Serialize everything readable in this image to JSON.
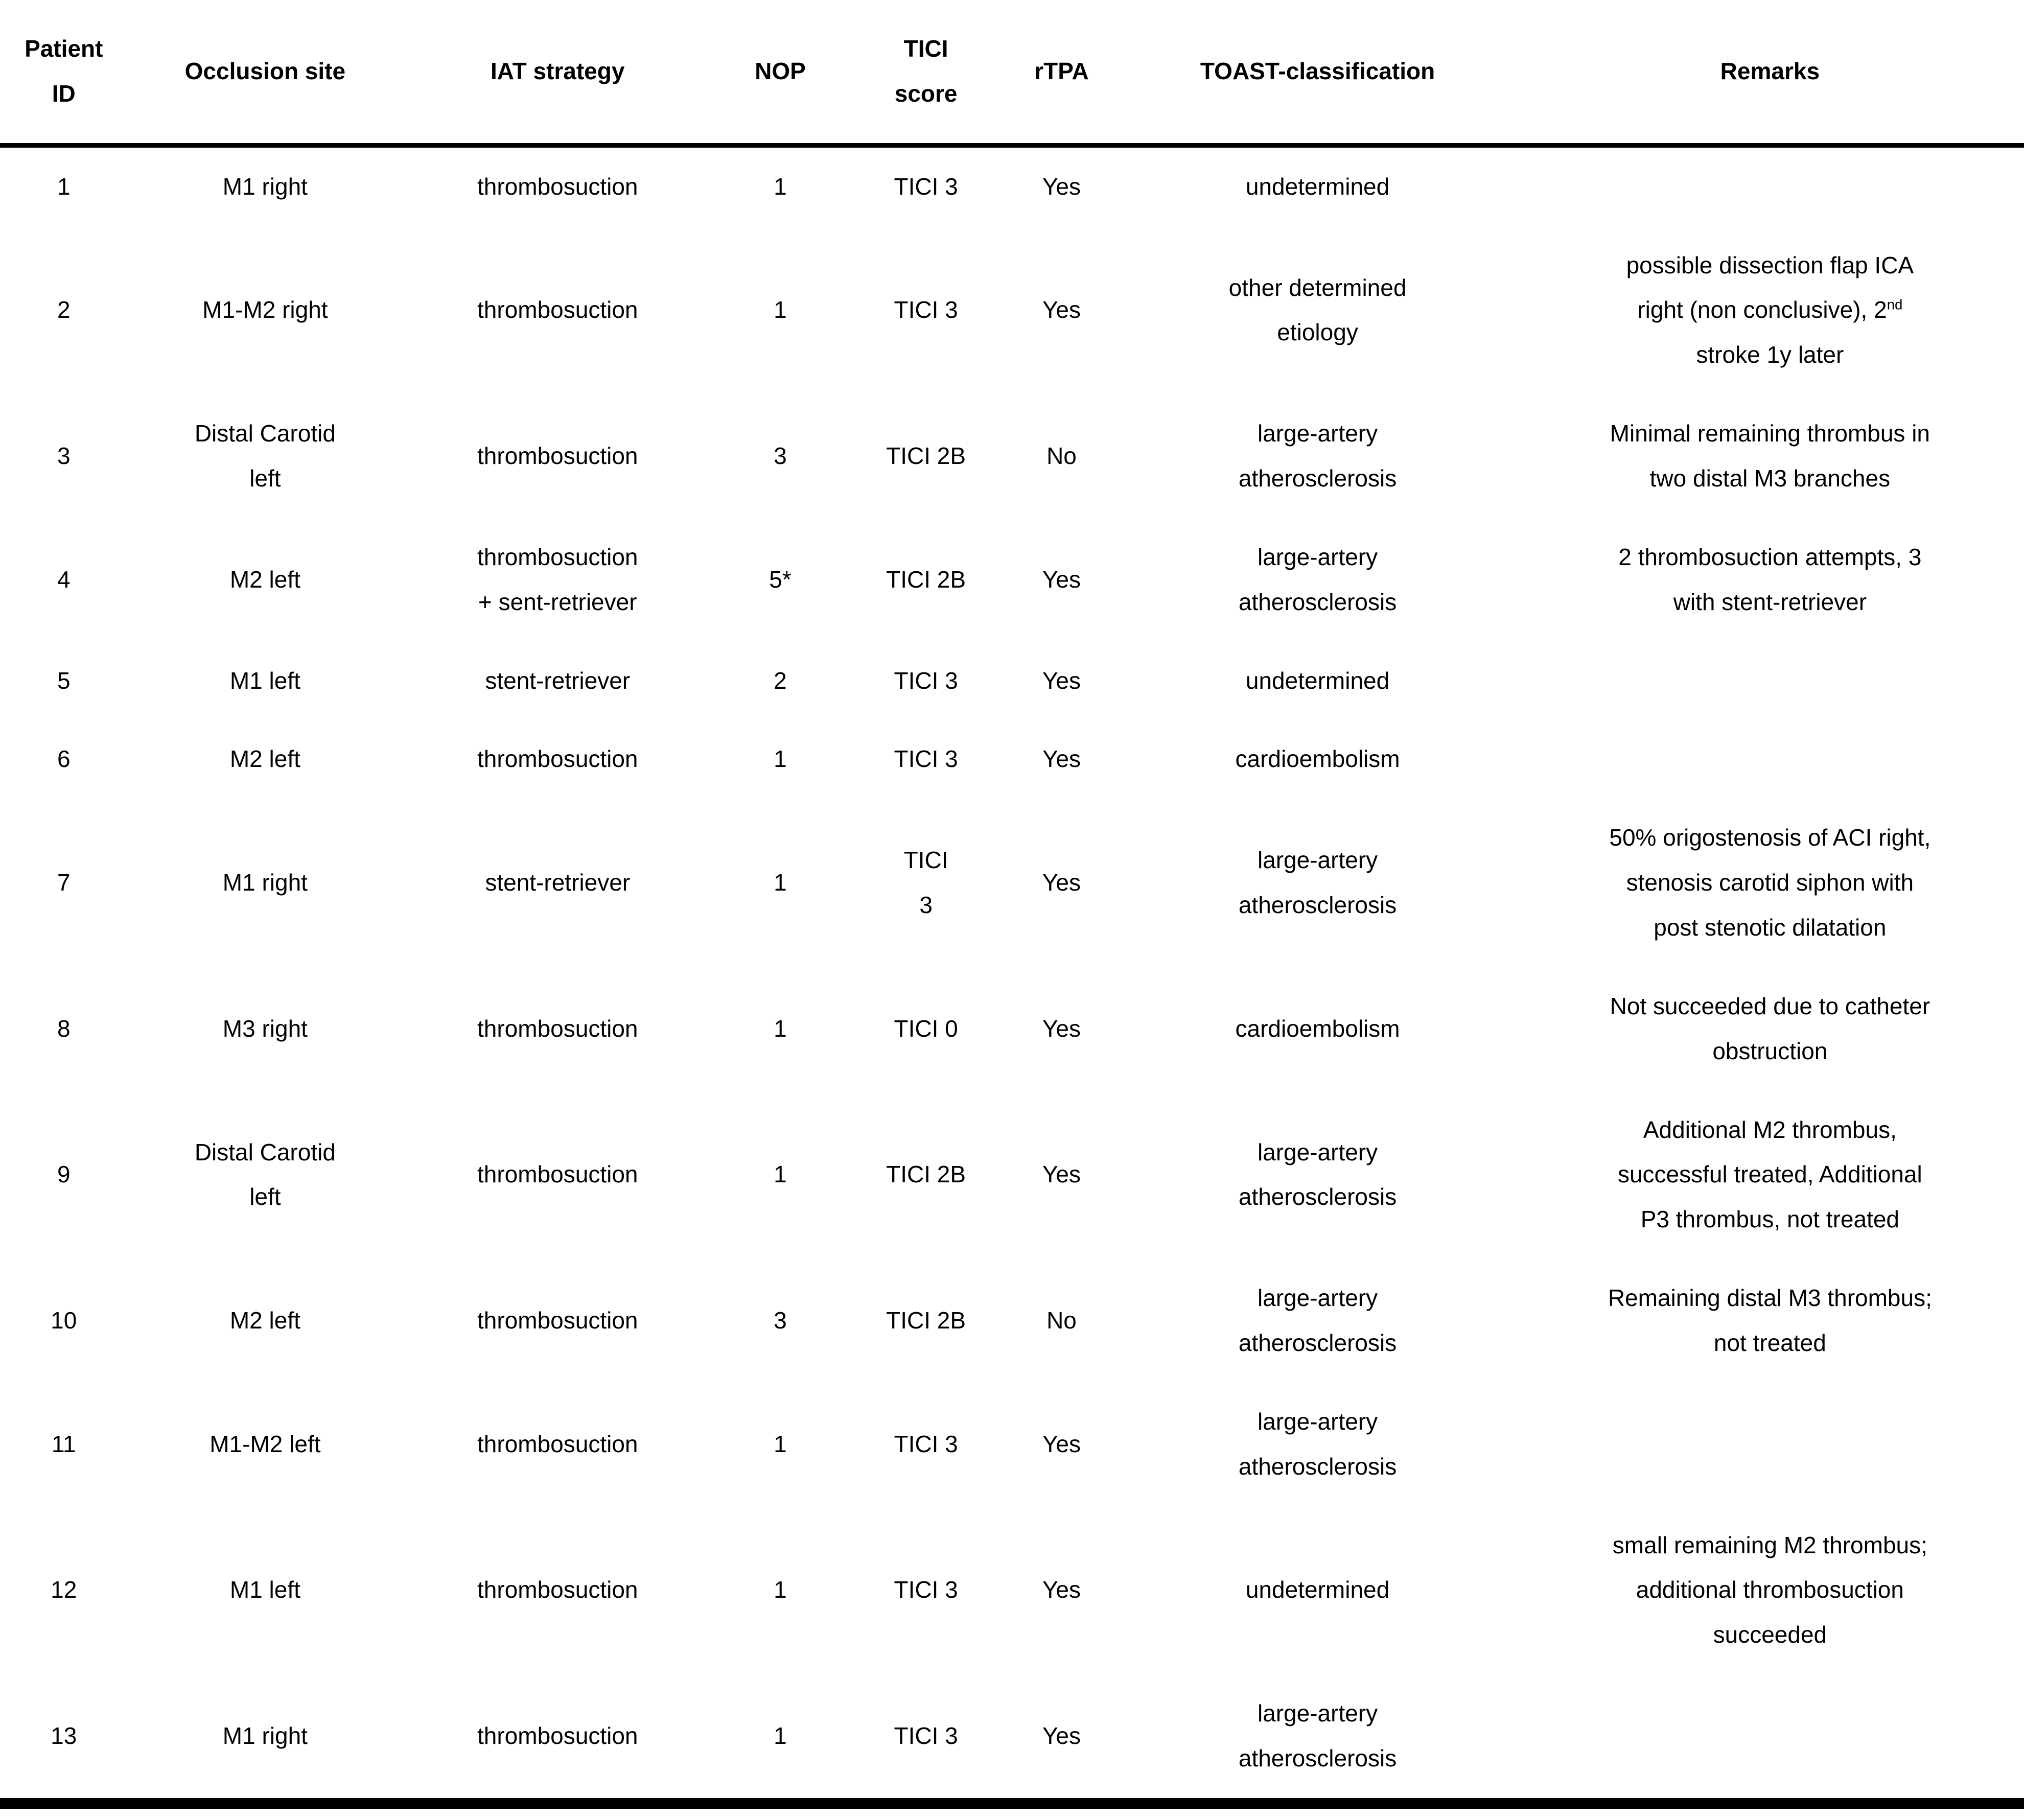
{
  "page": {
    "background": "#ffffff",
    "text_color": "#000000"
  },
  "table": {
    "columns": [
      {
        "key": "patient_id",
        "label": "Patient\nID"
      },
      {
        "key": "occlusion_site",
        "label": "Occlusion site"
      },
      {
        "key": "iat_strategy",
        "label": "IAT strategy"
      },
      {
        "key": "nop",
        "label": "NOP"
      },
      {
        "key": "tici_score",
        "label": "TICI\nscore"
      },
      {
        "key": "rtpa",
        "label": "rTPA"
      },
      {
        "key": "toast",
        "label": "TOAST-classification"
      },
      {
        "key": "remarks",
        "label": "Remarks"
      }
    ],
    "rows": [
      {
        "patient_id": "1",
        "occlusion_site": "M1 right",
        "iat_strategy": "thrombosuction",
        "nop": "1",
        "tici_score": "TICI 3",
        "rtpa": "Yes",
        "toast": "undetermined",
        "remarks": []
      },
      {
        "patient_id": "2",
        "occlusion_site": "M1-M2 right",
        "iat_strategy": "thrombosuction",
        "nop": "1",
        "tici_score": "TICI 3",
        "rtpa": "Yes",
        "toast": "other determined\netiology",
        "remarks": [
          {
            "text": "possible dissection flap ICA\nright (non conclusive), 2"
          },
          {
            "sup": "nd"
          },
          {
            "text": "\nstroke 1y later"
          }
        ]
      },
      {
        "patient_id": "3",
        "occlusion_site": "Distal Carotid\nleft",
        "iat_strategy": "thrombosuction",
        "nop": "3",
        "tici_score": "TICI 2B",
        "rtpa": "No",
        "toast": "large-artery\natherosclerosis",
        "remarks": [
          {
            "text": "Minimal remaining thrombus in\ntwo distal M3 branches"
          }
        ]
      },
      {
        "patient_id": "4",
        "occlusion_site": "M2 left",
        "iat_strategy": "thrombosuction\n+ sent-retriever",
        "nop": "5*",
        "tici_score": "TICI 2B",
        "rtpa": "Yes",
        "toast": "large-artery\natherosclerosis",
        "remarks": [
          {
            "text": "2 thrombosuction attempts, 3\nwith stent-retriever"
          }
        ]
      },
      {
        "patient_id": "5",
        "occlusion_site": "M1 left",
        "iat_strategy": "stent-retriever",
        "nop": "2",
        "tici_score": "TICI 3",
        "rtpa": "Yes",
        "toast": "undetermined",
        "remarks": []
      },
      {
        "patient_id": "6",
        "occlusion_site": "M2 left",
        "iat_strategy": "thrombosuction",
        "nop": "1",
        "tici_score": "TICI 3",
        "rtpa": "Yes",
        "toast": "cardioembolism",
        "remarks": []
      },
      {
        "patient_id": "7",
        "occlusion_site": "M1 right",
        "iat_strategy": "stent-retriever",
        "nop": "1",
        "tici_score": "TICI\n3",
        "rtpa": "Yes",
        "toast": "large-artery\natherosclerosis",
        "remarks": [
          {
            "text": "50% origostenosis of ACI right,\nstenosis carotid siphon with\npost stenotic dilatation"
          }
        ]
      },
      {
        "patient_id": "8",
        "occlusion_site": "M3 right",
        "iat_strategy": "thrombosuction",
        "nop": "1",
        "tici_score": "TICI 0",
        "rtpa": "Yes",
        "toast": "cardioembolism",
        "remarks": [
          {
            "text": "Not succeeded due to catheter\nobstruction"
          }
        ]
      },
      {
        "patient_id": "9",
        "occlusion_site": "Distal Carotid\nleft",
        "iat_strategy": "thrombosuction",
        "nop": "1",
        "tici_score": "TICI 2B",
        "rtpa": "Yes",
        "toast": "large-artery\natherosclerosis",
        "remarks": [
          {
            "text": "Additional M2 thrombus,\nsuccessful treated, Additional\nP3 thrombus, not treated"
          }
        ]
      },
      {
        "patient_id": "10",
        "occlusion_site": "M2 left",
        "iat_strategy": "thrombosuction",
        "nop": "3",
        "tici_score": "TICI 2B",
        "rtpa": "No",
        "toast": "large-artery\natherosclerosis",
        "remarks": [
          {
            "text": "Remaining distal M3 thrombus;\nnot treated"
          }
        ]
      },
      {
        "patient_id": "11",
        "occlusion_site": "M1-M2 left",
        "iat_strategy": "thrombosuction",
        "nop": "1",
        "tici_score": "TICI 3",
        "rtpa": "Yes",
        "toast": "large-artery\natherosclerosis",
        "remarks": []
      },
      {
        "patient_id": "12",
        "occlusion_site": "M1 left",
        "iat_strategy": "thrombosuction",
        "nop": "1",
        "tici_score": "TICI 3",
        "rtpa": "Yes",
        "toast": "undetermined",
        "remarks": [
          {
            "text": "small remaining M2 thrombus;\nadditional thrombosuction\nsucceeded"
          }
        ]
      },
      {
        "patient_id": "13",
        "occlusion_site": "M1 right",
        "iat_strategy": "thrombosuction",
        "nop": "1",
        "tici_score": "TICI 3",
        "rtpa": "Yes",
        "toast": "large-artery\natherosclerosis",
        "remarks": []
      }
    ]
  }
}
